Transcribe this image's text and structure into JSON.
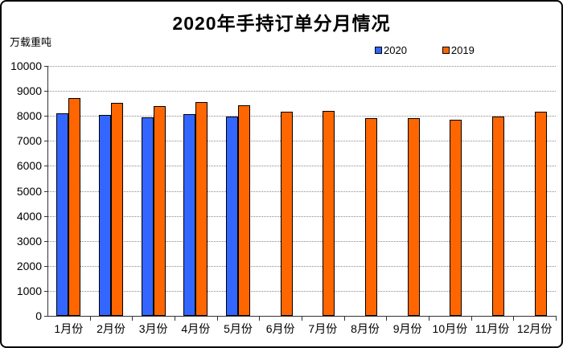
{
  "frame": {
    "background": "#FFFFFF",
    "border_color": "#000000"
  },
  "chart_data": {
    "type": "bar",
    "title": "2020年手持订单分月情况",
    "xlabel": "",
    "ylabel": "万载重吨",
    "categories": [
      "1月份",
      "2月份",
      "3月份",
      "4月份",
      "5月份",
      "6月份",
      "7月份",
      "8月份",
      "9月份",
      "10月份",
      "11月份",
      "12月份"
    ],
    "series": [
      {
        "name": "2020",
        "color": "#3366FF",
        "values": [
          8100,
          8030,
          7930,
          8060,
          7980,
          null,
          null,
          null,
          null,
          null,
          null,
          null
        ]
      },
      {
        "name": "2019",
        "color": "#FF6600",
        "values": [
          8720,
          8520,
          8390,
          8550,
          8420,
          8170,
          8210,
          7900,
          7920,
          7860,
          7970,
          8170
        ]
      }
    ],
    "ylim": [
      0,
      10000
    ],
    "ytick_step": 1000,
    "yticks": [
      10000,
      9000,
      8000,
      7000,
      6000,
      5000,
      4000,
      3000,
      2000,
      1000,
      0
    ],
    "grid": "horizontal-dotted",
    "gridline_color": "#8A8A8A",
    "axis_color": "#333333",
    "legend_position": "top-right"
  }
}
